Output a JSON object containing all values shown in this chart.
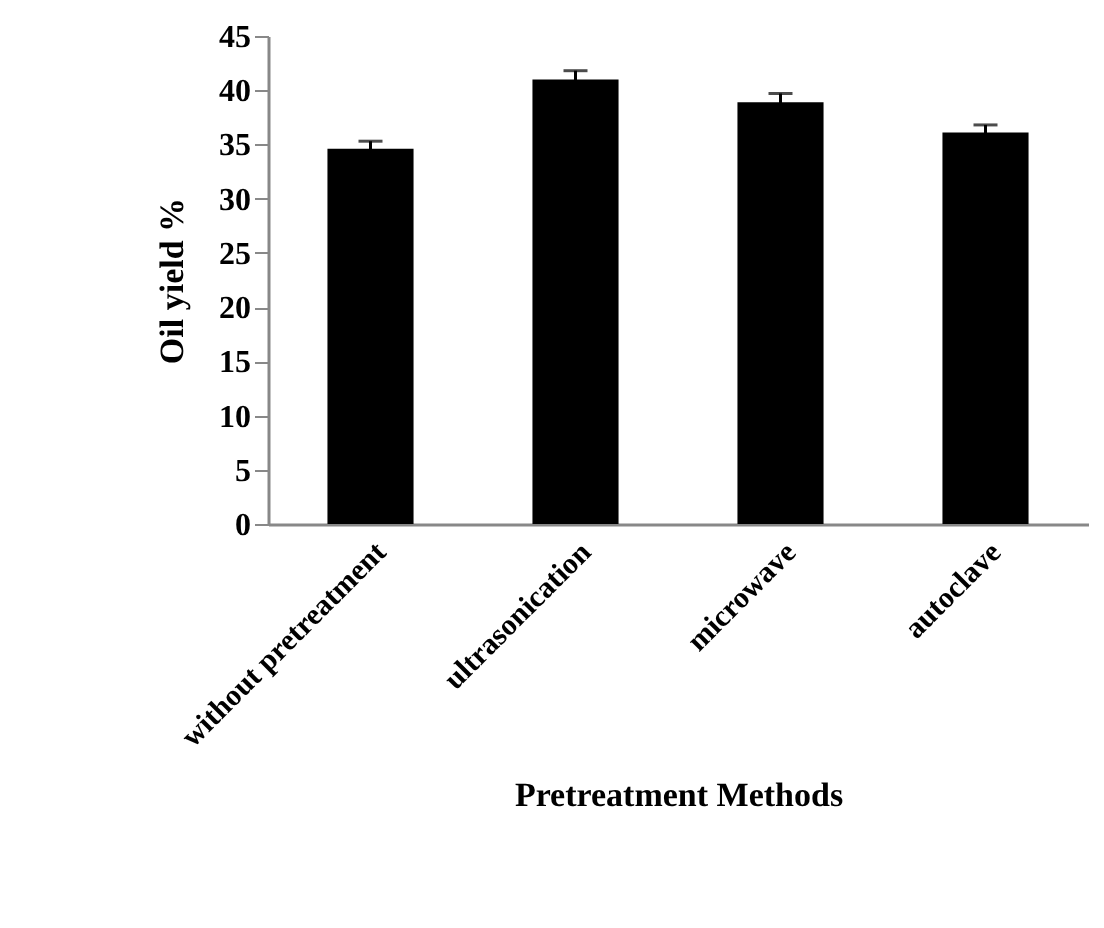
{
  "chart_data": {
    "type": "bar",
    "xlabel": "Pretreatment Methods",
    "ylabel": "Oil yield %",
    "categories": [
      "without pretreatment",
      "ultrasonication",
      "microwave",
      "autoclave"
    ],
    "values": [
      34.6,
      41.0,
      38.9,
      36.1
    ],
    "errors": [
      0.7,
      0.8,
      0.8,
      0.7
    ],
    "color": "#000000",
    "ylim": [
      0,
      45
    ],
    "yticks": [
      0,
      5,
      10,
      15,
      20,
      25,
      30,
      35,
      40,
      45
    ],
    "grid": false
  }
}
